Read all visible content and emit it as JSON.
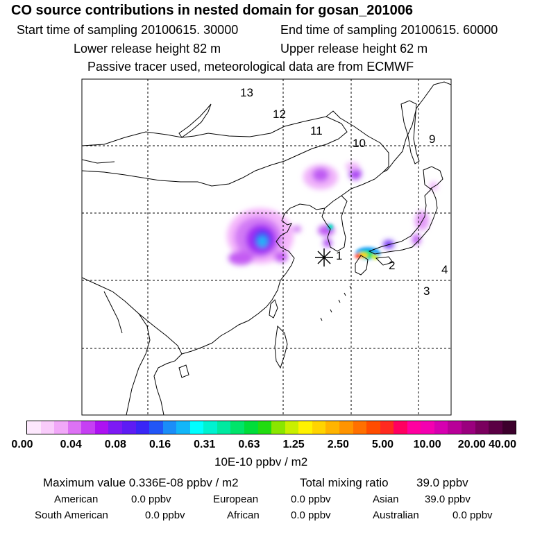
{
  "header": {
    "title": "CO  source contributions in nested domain for gosan_201006",
    "start_time": "Start time of sampling 20100615. 30000",
    "end_time": "End time of sampling 20100615. 60000",
    "lower_height": "Lower release height   82 m",
    "upper_height": "Upper release height   62 m",
    "tracer_note": "Passive tracer used, meteorological data are from ECMWF"
  },
  "map": {
    "region_labels": [
      "1",
      "2",
      "3",
      "4",
      "9",
      "10",
      "11",
      "12",
      "13"
    ],
    "receptor_marker": "asterisk"
  },
  "colorbar": {
    "ticks": [
      "0.00",
      "0.04",
      "0.08",
      "0.16",
      "0.31",
      "0.63",
      "1.25",
      "2.50",
      "5.00",
      "10.00",
      "20.00",
      "40.00"
    ],
    "colors": [
      "#fde8fd",
      "#f9ccfb",
      "#f1a8f8",
      "#dd72f4",
      "#c63ff3",
      "#ad12f2",
      "#7d1af4",
      "#5e1cf4",
      "#3926f6",
      "#2256f7",
      "#1b8df8",
      "#12b6f8",
      "#00ffff",
      "#00f2d0",
      "#00e9a0",
      "#00e46a",
      "#00dd3a",
      "#22dc10",
      "#8ae600",
      "#c9ef00",
      "#fff200",
      "#ffd400",
      "#ffb400",
      "#ff9400",
      "#ff7000",
      "#ff4c00",
      "#ff2a20",
      "#ff0060",
      "#ff00a0",
      "#f400b0",
      "#d600b0",
      "#b80098",
      "#9a007e",
      "#7a005e",
      "#5a0044",
      "#3c002c"
    ],
    "unit": "10E-10 ppbv / m2"
  },
  "summary": {
    "max_value": "Maximum value  0.336E-08 ppbv / m2",
    "total_mixing_label": "Total mixing ratio",
    "total_mixing_value": "39.0 ppbv",
    "american": "American",
    "american_val": "0.0 ppbv",
    "european": "European",
    "european_val": "0.0 ppbv",
    "asian": "Asian",
    "asian_val": "39.0 ppbv",
    "south_american": "South American",
    "south_american_val": "0.0 ppbv",
    "african": "African",
    "african_val": "0.0 ppbv",
    "australian": "Australian",
    "australian_val": "0.0 ppbv"
  }
}
